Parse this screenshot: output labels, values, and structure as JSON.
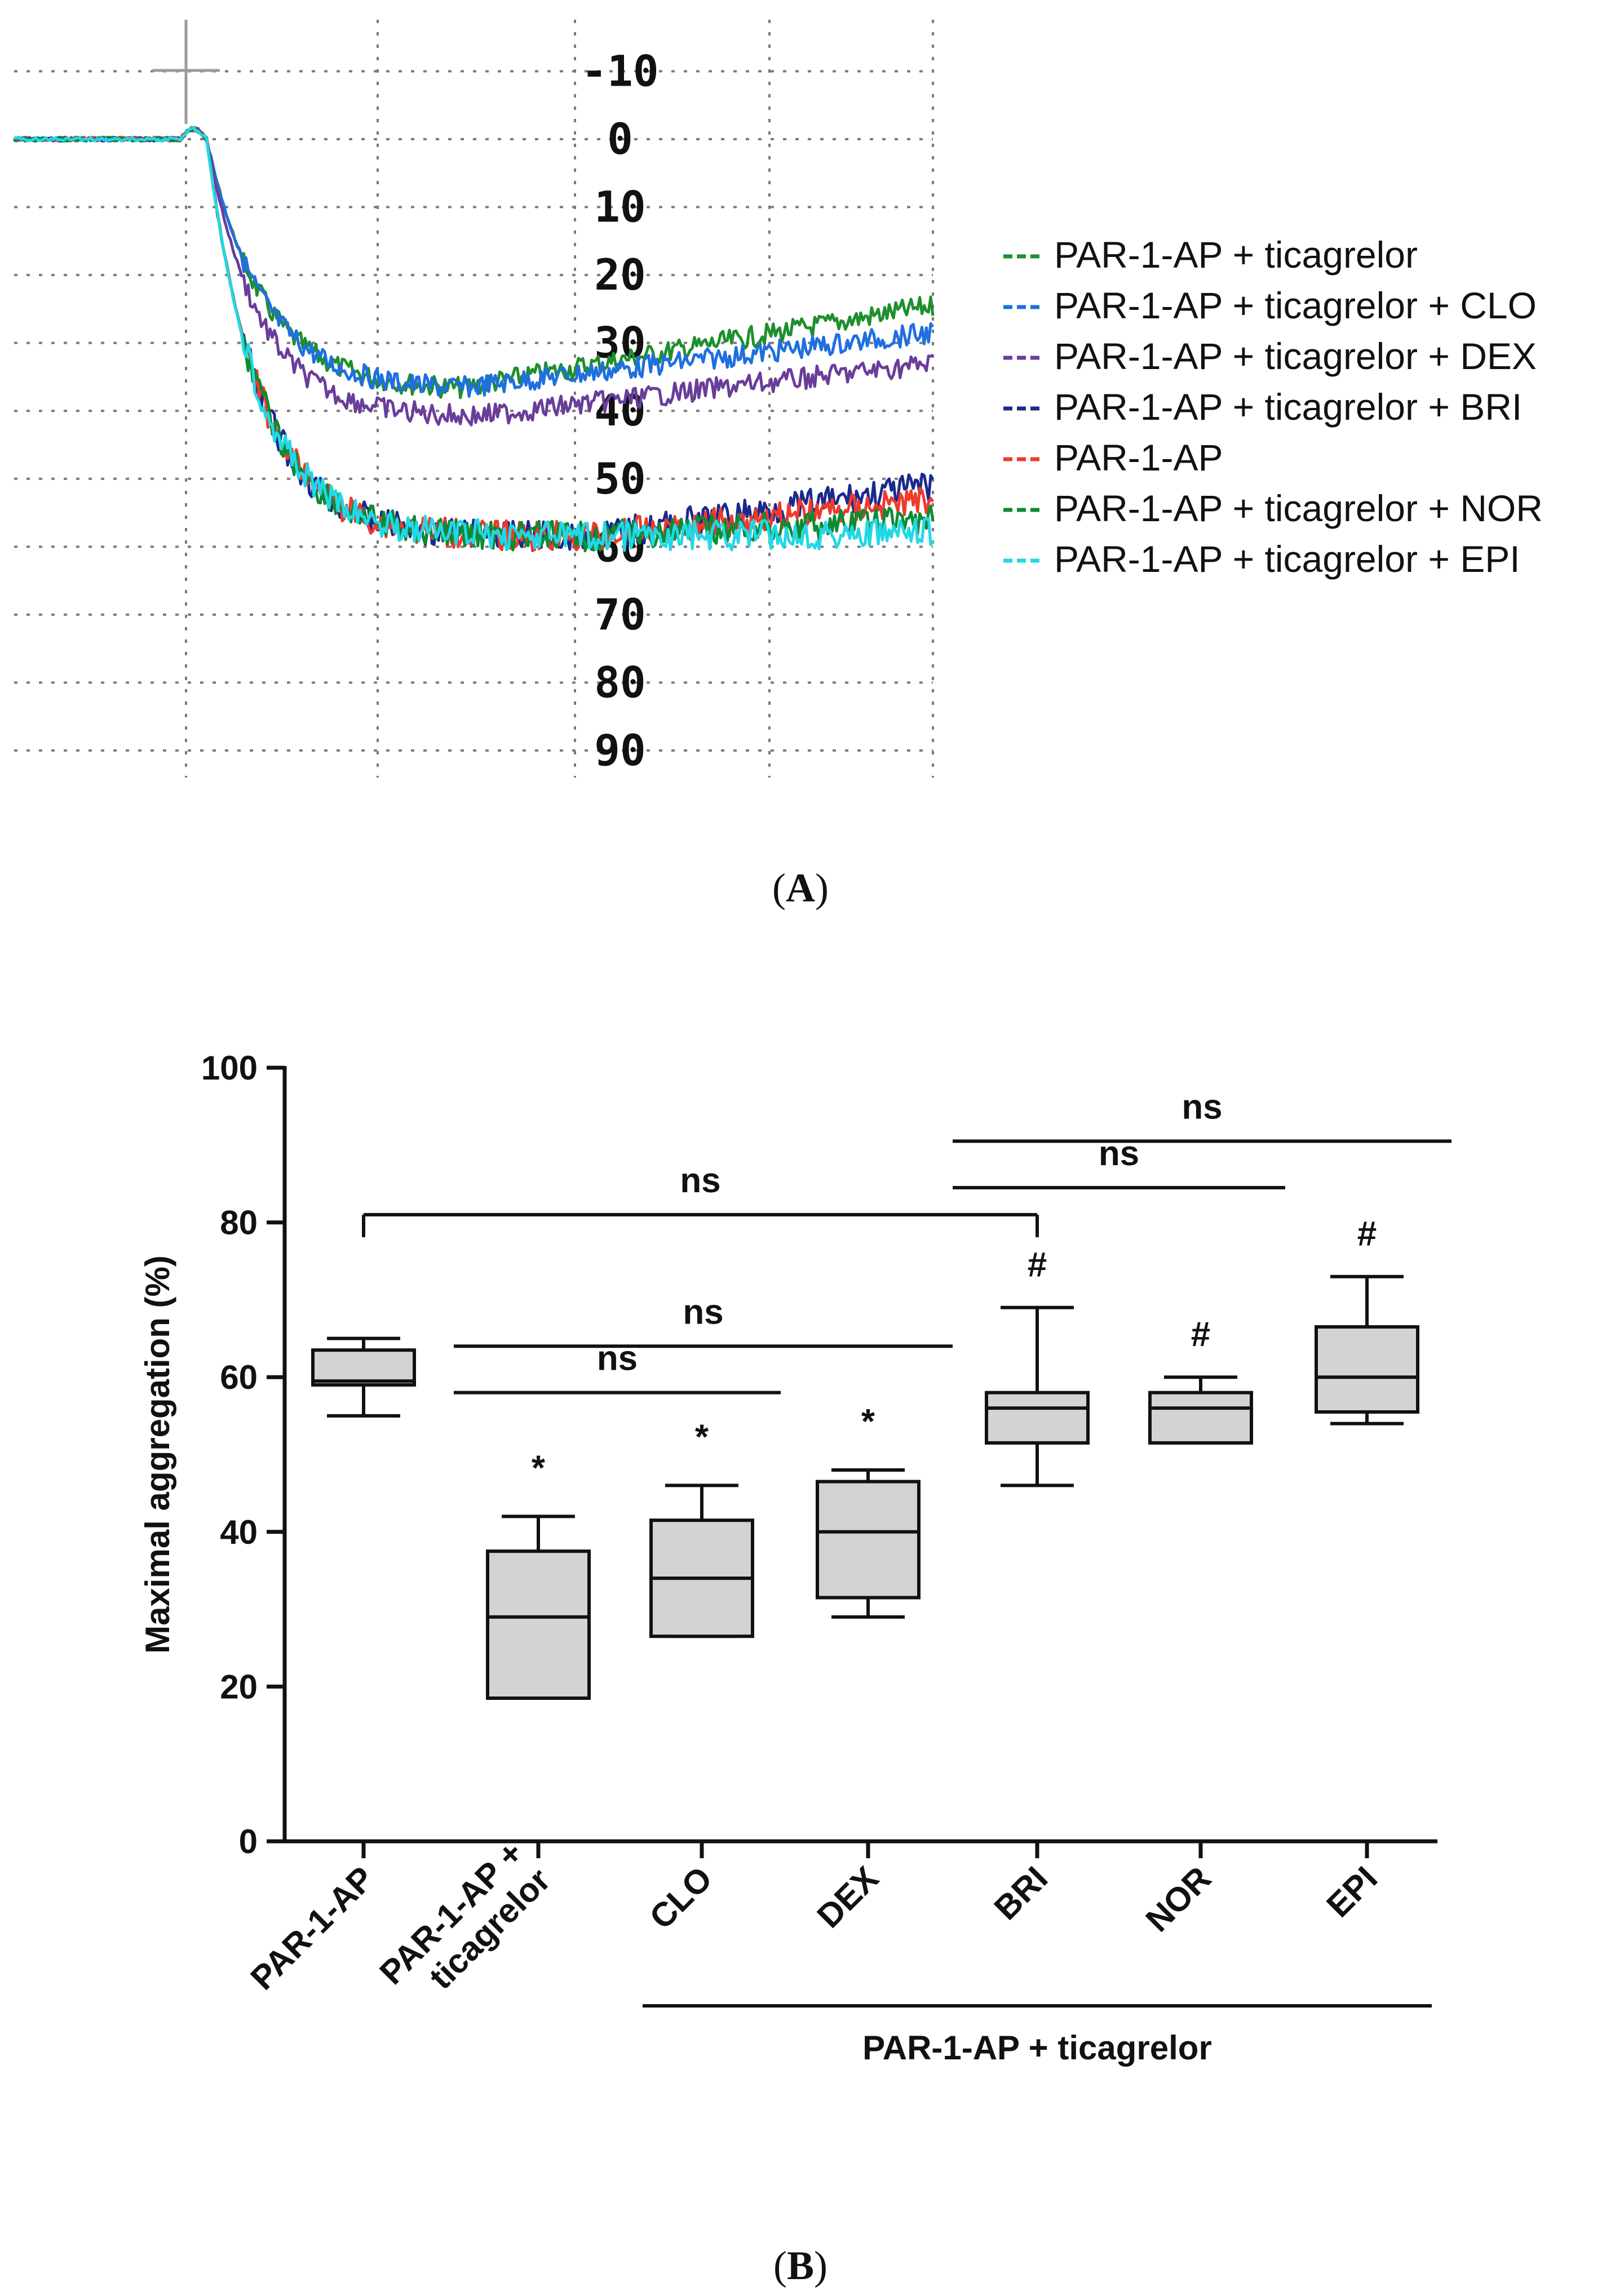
{
  "chart_data": [
    {
      "panel": "A",
      "type": "line",
      "panel_label": "A",
      "y_ticks": [
        "-10",
        "0",
        "10",
        "20",
        "30",
        "40",
        "50",
        "60",
        "70",
        "80",
        "90"
      ],
      "y_tick_values": [
        -10,
        0,
        10,
        20,
        30,
        40,
        50,
        60,
        70,
        80,
        90
      ],
      "ylim": [
        -20,
        100
      ],
      "x_range": [
        0,
        5.25
      ],
      "grid": true,
      "legend_position": "right",
      "series": [
        {
          "name": "PAR-1-AP + ticagrelor",
          "color": "#1e8f2e",
          "final": 24.5,
          "kind": "mid"
        },
        {
          "name": "PAR-1-AP + ticagrelor + CLO",
          "color": "#1f6fe0",
          "final": 28.5,
          "kind": "mid"
        },
        {
          "name": "PAR-1-AP + ticagrelor + DEX",
          "color": "#6a3d9a",
          "final": 33,
          "kind": "mid2"
        },
        {
          "name": "PAR-1-AP + ticagrelor + BRI",
          "color": "#1a2a8c",
          "final": 51,
          "kind": "low"
        },
        {
          "name": "PAR-1-AP",
          "color": "#ef3a2c",
          "final": 53,
          "kind": "low"
        },
        {
          "name": "PAR-1-AP + ticagrelor + NOR",
          "color": "#0f8a32",
          "final": 56,
          "kind": "low"
        },
        {
          "name": "PAR-1-AP + ticagrelor + EPI",
          "color": "#22d8e6",
          "final": 58,
          "kind": "low"
        }
      ]
    },
    {
      "panel": "B",
      "type": "box",
      "panel_label": "B",
      "ylabel": "Maximal aggregation (%)",
      "ylim": [
        0,
        100
      ],
      "y_ticks": [
        "0",
        "20",
        "40",
        "60",
        "80",
        "100"
      ],
      "y_tick_values": [
        0,
        20,
        40,
        60,
        80,
        100
      ],
      "categories": [
        "PAR-1-AP",
        "PAR-1-AP + ticagrelor",
        "CLO",
        "DEX",
        "BRI",
        "NOR",
        "EPI"
      ],
      "category_lines": [
        [
          "PAR-1-AP"
        ],
        [
          "PAR-1-AP +",
          "ticagrelor"
        ],
        [
          "CLO"
        ],
        [
          "DEX"
        ],
        [
          "BRI"
        ],
        [
          "NOR"
        ],
        [
          "EPI"
        ]
      ],
      "group_label": "PAR-1-AP + ticagrelor",
      "boxes": [
        {
          "min": 55,
          "q1": 59,
          "median": 59.5,
          "q3": 63.5,
          "max": 65,
          "mark": ""
        },
        {
          "min": 18.5,
          "q1": 18.5,
          "median": 29,
          "q3": 37.5,
          "max": 42,
          "mark": "*"
        },
        {
          "min": 26.5,
          "q1": 26.5,
          "median": 34,
          "q3": 41.5,
          "max": 46,
          "mark": "*"
        },
        {
          "min": 29,
          "q1": 31.5,
          "median": 40,
          "q3": 46.5,
          "max": 48,
          "mark": "*"
        },
        {
          "min": 46,
          "q1": 51.5,
          "median": 56,
          "q3": 58,
          "max": 69,
          "mark": "#"
        },
        {
          "min": 51.5,
          "q1": 51.5,
          "median": 56,
          "q3": 58,
          "max": 60,
          "mark": "#"
        },
        {
          "min": 54,
          "q1": 55.5,
          "median": 60,
          "q3": 66.5,
          "max": 73,
          "mark": "#"
        }
      ],
      "comparisons": [
        {
          "from": 0,
          "to": 4,
          "level": 81,
          "label": "ns",
          "ticks": true
        },
        {
          "from": 4,
          "to": 6,
          "level": 90.5,
          "label": "ns",
          "ticks": false
        },
        {
          "from": 4,
          "to": 5,
          "level": 84.5,
          "label": "ns",
          "ticks": false
        },
        {
          "from": 1,
          "to": 3,
          "level": 64,
          "label": "ns",
          "ticks": false
        },
        {
          "from": 1,
          "to": 2,
          "level": 58,
          "label": "ns",
          "ticks": false
        }
      ]
    }
  ]
}
